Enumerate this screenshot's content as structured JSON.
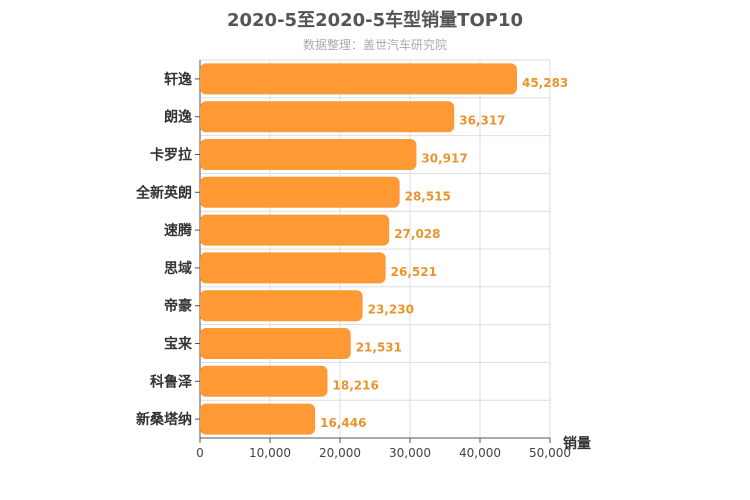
{
  "chart_data": {
    "type": "bar",
    "orientation": "horizontal",
    "title": "2020-5至2020-5车型销量TOP10",
    "subtitle": "数据整理：盖世汽车研究院",
    "xlabel": "销量",
    "xlim": [
      0,
      50000
    ],
    "xticks": [
      "0",
      "10,000",
      "20,000",
      "30,000",
      "40,000",
      "50,000"
    ],
    "grid": true,
    "bar_color": "#ff9933",
    "label_color": "#e8952f",
    "categories": [
      "轩逸",
      "朗逸",
      "卡罗拉",
      "全新英朗",
      "速腾",
      "思域",
      "帝豪",
      "宝来",
      "科鲁泽",
      "新桑塔纳"
    ],
    "values": [
      45283,
      36317,
      30917,
      28515,
      27028,
      26521,
      23230,
      21531,
      18216,
      16446
    ],
    "value_labels": [
      "45,283",
      "36,317",
      "30,917",
      "28,515",
      "27,028",
      "26,521",
      "23,230",
      "21,531",
      "18,216",
      "16,446"
    ]
  }
}
